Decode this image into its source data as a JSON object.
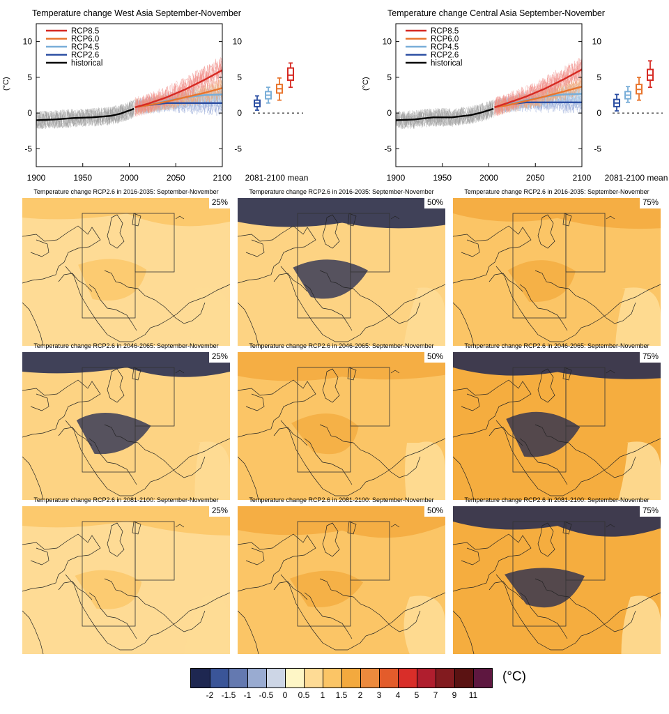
{
  "timeseries_panels": [
    {
      "id": "west",
      "title": "Temperature change West Asia September-November",
      "ylabel": "(°C)",
      "mean_label": "2081-2100 mean"
    },
    {
      "id": "central",
      "title": "Temperature change Central Asia September-November",
      "ylabel": "(°C)",
      "mean_label": "2081-2100 mean"
    }
  ],
  "chart_data": [
    {
      "type": "line",
      "title": "Temperature change West Asia September-November",
      "ylabel": "(°C)",
      "xlim": [
        1900,
        2100
      ],
      "ylim": [
        -7.5,
        12.5
      ],
      "xticks": [
        1900,
        1950,
        2000,
        2050,
        2100
      ],
      "yticks": [
        -5,
        0,
        5,
        10
      ],
      "legend": "top-left",
      "series": [
        {
          "name": "RCP8.5",
          "color": "#d62a23",
          "x": [
            2006,
            2020,
            2040,
            2060,
            2080,
            2100
          ],
          "values": [
            0.8,
            1.3,
            2.2,
            3.3,
            4.6,
            6.0
          ]
        },
        {
          "name": "RCP6.0",
          "color": "#e8742c",
          "x": [
            2006,
            2020,
            2040,
            2060,
            2080,
            2100
          ],
          "values": [
            0.8,
            1.1,
            1.6,
            2.2,
            2.8,
            3.5
          ]
        },
        {
          "name": "RCP4.5",
          "color": "#79aed8",
          "x": [
            2006,
            2020,
            2040,
            2060,
            2080,
            2100
          ],
          "values": [
            0.8,
            1.1,
            1.7,
            2.2,
            2.5,
            2.6
          ]
        },
        {
          "name": "RCP2.6",
          "color": "#2b4ea2",
          "x": [
            2006,
            2020,
            2040,
            2060,
            2080,
            2100
          ],
          "values": [
            0.8,
            1.1,
            1.4,
            1.4,
            1.4,
            1.4
          ]
        },
        {
          "name": "historical",
          "color": "#000000",
          "x": [
            1900,
            1920,
            1940,
            1960,
            1980,
            1990,
            2005
          ],
          "values": [
            -1.0,
            -0.9,
            -0.7,
            -0.6,
            -0.4,
            -0.1,
            0.6
          ]
        }
      ],
      "mean_boxes": [
        {
          "series": "RCP2.6",
          "median": 1.4,
          "q1": 0.9,
          "q3": 1.8,
          "min": 0.4,
          "max": 2.4
        },
        {
          "series": "RCP4.5",
          "median": 2.5,
          "q1": 2.0,
          "q3": 3.0,
          "min": 1.4,
          "max": 3.6
        },
        {
          "series": "RCP6.0",
          "median": 3.4,
          "q1": 2.8,
          "q3": 4.0,
          "min": 1.8,
          "max": 4.9
        },
        {
          "series": "RCP8.5",
          "median": 5.3,
          "q1": 4.6,
          "q3": 6.3,
          "min": 3.6,
          "max": 7.0
        }
      ]
    },
    {
      "type": "line",
      "title": "Temperature change Central Asia September-November",
      "ylabel": "(°C)",
      "xlim": [
        1900,
        2100
      ],
      "ylim": [
        -7.5,
        12.5
      ],
      "xticks": [
        1900,
        1950,
        2000,
        2050,
        2100
      ],
      "yticks": [
        -5,
        0,
        5,
        10
      ],
      "legend": "top-left",
      "series": [
        {
          "name": "RCP8.5",
          "color": "#d62a23",
          "x": [
            2006,
            2020,
            2040,
            2060,
            2080,
            2100
          ],
          "values": [
            0.8,
            1.4,
            2.3,
            3.4,
            4.7,
            6.1
          ]
        },
        {
          "name": "RCP6.0",
          "color": "#e8742c",
          "x": [
            2006,
            2020,
            2040,
            2060,
            2080,
            2100
          ],
          "values": [
            0.8,
            1.1,
            1.7,
            2.3,
            3.0,
            3.7
          ]
        },
        {
          "name": "RCP4.5",
          "color": "#79aed8",
          "x": [
            2006,
            2020,
            2040,
            2060,
            2080,
            2100
          ],
          "values": [
            0.8,
            1.2,
            1.8,
            2.3,
            2.6,
            2.7
          ]
        },
        {
          "name": "RCP2.6",
          "color": "#2b4ea2",
          "x": [
            2006,
            2020,
            2040,
            2060,
            2080,
            2100
          ],
          "values": [
            0.8,
            1.2,
            1.5,
            1.5,
            1.5,
            1.5
          ]
        },
        {
          "name": "historical",
          "color": "#000000",
          "x": [
            1900,
            1920,
            1940,
            1960,
            1980,
            1990,
            2005
          ],
          "values": [
            -1.0,
            -0.9,
            -0.6,
            -0.6,
            -0.3,
            0.0,
            0.6
          ]
        }
      ],
      "mean_boxes": [
        {
          "series": "RCP2.6",
          "median": 1.4,
          "q1": 0.9,
          "q3": 1.9,
          "min": 0.3,
          "max": 2.6
        },
        {
          "series": "RCP4.5",
          "median": 2.5,
          "q1": 2.0,
          "q3": 3.0,
          "min": 1.5,
          "max": 3.7
        },
        {
          "series": "RCP6.0",
          "median": 3.3,
          "q1": 2.7,
          "q3": 4.0,
          "min": 1.8,
          "max": 5.0
        },
        {
          "series": "RCP8.5",
          "median": 5.3,
          "q1": 4.6,
          "q3": 6.1,
          "min": 3.6,
          "max": 7.3
        }
      ]
    }
  ],
  "map_panels": [
    {
      "title": "Temperature change RCP2.6 in 2016-2035: September-November",
      "percentile": "25%",
      "base_color": "#fedb95"
    },
    {
      "title": "Temperature change RCP2.6 in 2016-2035: September-November",
      "percentile": "50%",
      "base_color": "#fdd383"
    },
    {
      "title": "Temperature change RCP2.6 in 2016-2035: September-November",
      "percentile": "75%",
      "base_color": "#fbc566"
    },
    {
      "title": "Temperature change RCP2.6 in 2046-2065: September-November",
      "percentile": "25%",
      "base_color": "#fdd383"
    },
    {
      "title": "Temperature change RCP2.6 in 2046-2065: September-November",
      "percentile": "50%",
      "base_color": "#fbc566"
    },
    {
      "title": "Temperature change RCP2.6 in 2046-2065: September-November",
      "percentile": "75%",
      "base_color": "#f5ad3f"
    },
    {
      "title": "Temperature change RCP2.6 in 2081-2100: September-November",
      "percentile": "25%",
      "base_color": "#fedb95"
    },
    {
      "title": "Temperature change RCP2.6 in 2081-2100: September-November",
      "percentile": "50%",
      "base_color": "#fbc566"
    },
    {
      "title": "Temperature change RCP2.6 in 2081-2100: September-November",
      "percentile": "75%",
      "base_color": "#f5ad3f"
    }
  ],
  "colorbar": {
    "unit": "(°C)",
    "ticks": [
      "-2",
      "-1.5",
      "-1",
      "-0.5",
      "0",
      "0.5",
      "1",
      "1.5",
      "2",
      "3",
      "4",
      "5",
      "7",
      "9",
      "11"
    ],
    "colors": [
      "#1e2751",
      "#3a5598",
      "#6479b0",
      "#99abd1",
      "#cdd6e6",
      "#fef6c6",
      "#fedb95",
      "#fbc566",
      "#f3a93e",
      "#ec8a3d",
      "#e35c2b",
      "#d92e29",
      "#b01e2e",
      "#821b1f",
      "#5a1212",
      "#5e1740"
    ]
  }
}
